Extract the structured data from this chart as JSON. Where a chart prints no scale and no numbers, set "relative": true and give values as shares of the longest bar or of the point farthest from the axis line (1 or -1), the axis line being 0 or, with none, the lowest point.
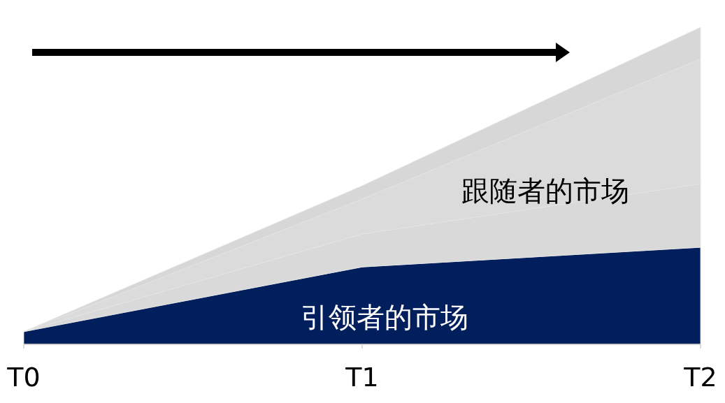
{
  "chart_data": {
    "type": "area",
    "stacked": true,
    "relative": true,
    "categories": [
      "T0",
      "T1",
      "T2"
    ],
    "series": [
      {
        "color": "#001f5c",
        "values": [
          0.04,
          0.244,
          0.306
        ]
      },
      {
        "color": "#d9d9d9",
        "values": [
          0,
          0.104,
          0.2
        ]
      },
      {
        "color": "#dbdbdb",
        "values": [
          0,
          0.11,
          0.394
        ]
      },
      {
        "color": "#d7d7d7",
        "values": [
          0,
          0.042,
          0.1
        ]
      }
    ],
    "annotations": [
      "跟随者的市场",
      "引领者的市场"
    ]
  }
}
